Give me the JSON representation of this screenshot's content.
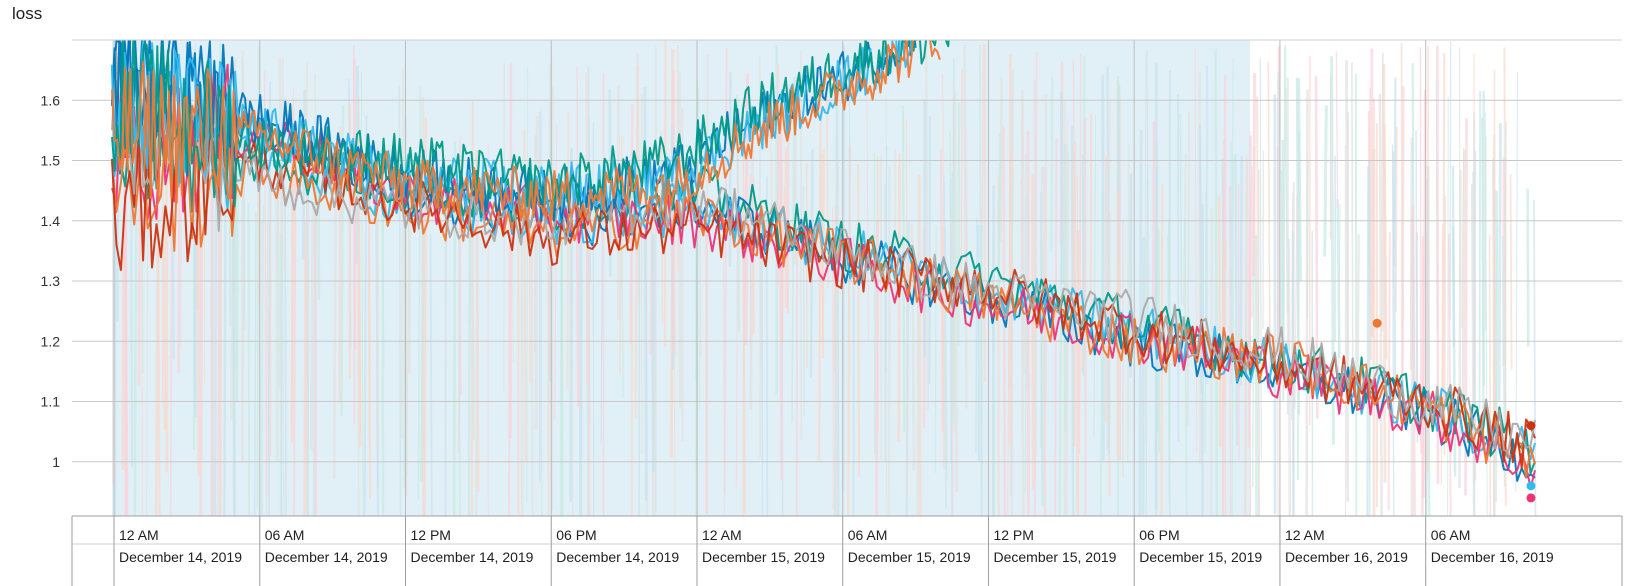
{
  "chart_data": {
    "type": "line",
    "title": "loss",
    "xlabel": "",
    "ylabel": "",
    "ylim": [
      0.91,
      1.7
    ],
    "yticks": [
      1,
      1.1,
      1.2,
      1.3,
      1.4,
      1.5,
      1.6
    ],
    "ytick_labels": [
      "1",
      "1.1",
      "1.2",
      "1.3",
      "1.4",
      "1.5",
      "1.6"
    ],
    "xlim": [
      "2019-12-13T23:55",
      "2019-12-16T10:30"
    ],
    "xticks": [
      {
        "time": "2019-12-14T00:00",
        "label_time": "12 AM",
        "label_date": "December 14, 2019"
      },
      {
        "time": "2019-12-14T06:00",
        "label_time": "06 AM",
        "label_date": "December 14, 2019"
      },
      {
        "time": "2019-12-14T12:00",
        "label_time": "12 PM",
        "label_date": "December 14, 2019"
      },
      {
        "time": "2019-12-14T18:00",
        "label_time": "06 PM",
        "label_date": "December 14, 2019"
      },
      {
        "time": "2019-12-15T00:00",
        "label_time": "12 AM",
        "label_date": "December 15, 2019"
      },
      {
        "time": "2019-12-15T06:00",
        "label_time": "06 AM",
        "label_date": "December 15, 2019"
      },
      {
        "time": "2019-12-15T12:00",
        "label_time": "12 PM",
        "label_date": "December 15, 2019"
      },
      {
        "time": "2019-12-15T18:00",
        "label_time": "06 PM",
        "label_date": "December 15, 2019"
      },
      {
        "time": "2019-12-16T00:00",
        "label_time": "12 AM",
        "label_date": "December 16, 2019"
      },
      {
        "time": "2019-12-16T06:00",
        "label_time": "06 AM",
        "label_date": "December 16, 2019"
      }
    ],
    "grid": true,
    "legend": "none",
    "background_colors": [
      "#c9e3ef",
      "#fbd3dc",
      "#c8ebe3",
      "#f8d9cc",
      "#e2e2e2"
    ],
    "series": [
      {
        "color": "#0077bb",
        "x": [
          "2019-12-13T23:55",
          "2019-12-14T06:00",
          "2019-12-14T12:00",
          "2019-12-14T18:00",
          "2019-12-15T00:00",
          "2019-12-15T06:00",
          "2019-12-15T12:00",
          "2019-12-15T18:00",
          "2019-12-16T00:00",
          "2019-12-16T06:00",
          "2019-12-16T10:30"
        ],
        "values": [
          1.65,
          1.56,
          1.45,
          1.39,
          1.43,
          1.34,
          1.27,
          1.2,
          1.15,
          1.08,
          1.0
        ]
      },
      {
        "color": "#33bbee",
        "x": [
          "2019-12-13T23:55",
          "2019-12-14T06:00",
          "2019-12-14T12:00",
          "2019-12-14T18:00",
          "2019-12-15T00:00",
          "2019-12-15T06:00",
          "2019-12-15T12:00",
          "2019-12-15T18:00",
          "2019-12-16T00:00",
          "2019-12-16T06:00",
          "2019-12-16T10:30"
        ],
        "values": [
          1.6,
          1.52,
          1.43,
          1.4,
          1.42,
          1.35,
          1.28,
          1.22,
          1.16,
          1.09,
          1.01
        ]
      },
      {
        "color": "#009988",
        "x": [
          "2019-12-13T23:55",
          "2019-12-14T06:00",
          "2019-12-14T12:00",
          "2019-12-14T18:00",
          "2019-12-15T00:00",
          "2019-12-15T06:00",
          "2019-12-15T12:00",
          "2019-12-15T18:00",
          "2019-12-16T00:00",
          "2019-12-16T06:00",
          "2019-12-16T10:30"
        ],
        "values": [
          1.55,
          1.5,
          1.46,
          1.42,
          1.45,
          1.36,
          1.3,
          1.23,
          1.17,
          1.1,
          1.02
        ]
      },
      {
        "color": "#ee3377",
        "x": [
          "2019-12-13T23:55",
          "2019-12-14T06:00",
          "2019-12-14T12:00",
          "2019-12-14T18:00",
          "2019-12-15T00:00",
          "2019-12-15T06:00",
          "2019-12-15T12:00",
          "2019-12-15T18:00",
          "2019-12-16T00:00",
          "2019-12-16T06:00",
          "2019-12-16T10:30"
        ],
        "values": [
          1.5,
          1.55,
          1.44,
          1.41,
          1.4,
          1.33,
          1.26,
          1.21,
          1.15,
          1.08,
          0.99
        ]
      },
      {
        "color": "#ee7733",
        "x": [
          "2019-12-13T23:55",
          "2019-12-14T06:00",
          "2019-12-14T12:00",
          "2019-12-14T18:00",
          "2019-12-15T00:00",
          "2019-12-15T06:00",
          "2019-12-15T12:00",
          "2019-12-15T18:00",
          "2019-12-16T00:00",
          "2019-12-16T06:00",
          "2019-12-16T10:30"
        ],
        "values": [
          1.45,
          1.48,
          1.42,
          1.38,
          1.41,
          1.34,
          1.27,
          1.2,
          1.17,
          1.09,
          1.0
        ]
      },
      {
        "color": "#cc3311",
        "x": [
          "2019-12-13T23:55",
          "2019-12-14T06:00",
          "2019-12-14T12:00",
          "2019-12-14T18:00",
          "2019-12-15T00:00",
          "2019-12-15T06:00",
          "2019-12-15T12:00",
          "2019-12-15T18:00",
          "2019-12-16T00:00",
          "2019-12-16T06:00",
          "2019-12-16T10:30"
        ],
        "values": [
          1.4,
          1.5,
          1.43,
          1.37,
          1.39,
          1.33,
          1.29,
          1.22,
          1.16,
          1.1,
          1.02
        ]
      },
      {
        "color": "#aaaaaa",
        "x": [
          "2019-12-13T23:55",
          "2019-12-14T06:00",
          "2019-12-14T12:00",
          "2019-12-14T18:00",
          "2019-12-15T00:00",
          "2019-12-15T06:00",
          "2019-12-15T12:00",
          "2019-12-15T18:00",
          "2019-12-16T00:00",
          "2019-12-16T06:00",
          "2019-12-16T10:30"
        ],
        "values": [
          1.58,
          1.47,
          1.42,
          1.4,
          1.44,
          1.35,
          1.28,
          1.24,
          1.18,
          1.1,
          1.03
        ]
      },
      {
        "color": "#0077bb",
        "x": [
          "2019-12-13T23:55",
          "2019-12-14T06:00",
          "2019-12-14T12:00",
          "2019-12-14T18:00",
          "2019-12-14T23:00",
          "2019-12-15T03:00",
          "2019-12-15T07:00",
          "2019-12-15T09:00"
        ],
        "values": [
          1.62,
          1.57,
          1.48,
          1.44,
          1.48,
          1.58,
          1.66,
          1.72
        ]
      },
      {
        "color": "#33bbee",
        "x": [
          "2019-12-13T23:55",
          "2019-12-14T06:00",
          "2019-12-14T12:00",
          "2019-12-14T18:00",
          "2019-12-14T23:00",
          "2019-12-15T03:00",
          "2019-12-15T07:00",
          "2019-12-15T09:00"
        ],
        "values": [
          1.58,
          1.55,
          1.47,
          1.45,
          1.47,
          1.57,
          1.65,
          1.71
        ]
      },
      {
        "color": "#009988",
        "x": [
          "2019-12-13T23:55",
          "2019-12-14T06:00",
          "2019-12-14T12:00",
          "2019-12-14T18:00",
          "2019-12-14T23:00",
          "2019-12-15T03:00",
          "2019-12-15T07:00",
          "2019-12-15T11:00"
        ],
        "values": [
          1.6,
          1.53,
          1.5,
          1.46,
          1.5,
          1.6,
          1.67,
          1.72
        ]
      },
      {
        "color": "#ee7733",
        "x": [
          "2019-12-13T23:55",
          "2019-12-14T06:00",
          "2019-12-14T12:00",
          "2019-12-14T18:00",
          "2019-12-14T23:00",
          "2019-12-15T03:00",
          "2019-12-15T07:00",
          "2019-12-15T10:00"
        ],
        "values": [
          1.55,
          1.54,
          1.46,
          1.44,
          1.46,
          1.56,
          1.64,
          1.71
        ]
      }
    ],
    "endpoint_markers": [
      {
        "time": "2019-12-16T04:00",
        "value": 1.23,
        "color": "#ee7733"
      },
      {
        "time": "2019-12-16T10:20",
        "value": 1.06,
        "color": "#cc3311"
      },
      {
        "time": "2019-12-16T10:20",
        "value": 0.96,
        "color": "#33bbee"
      },
      {
        "time": "2019-12-16T10:20",
        "value": 0.94,
        "color": "#ee3377"
      }
    ]
  }
}
